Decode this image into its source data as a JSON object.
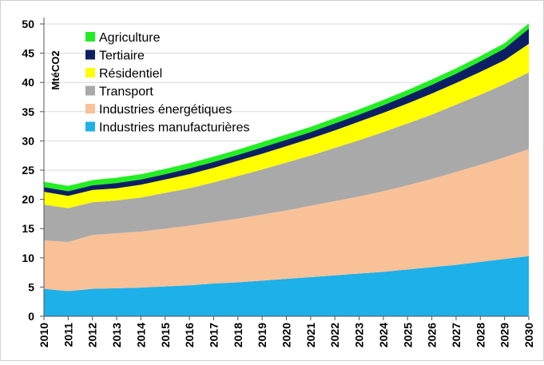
{
  "chart_data": {
    "type": "area",
    "stacked": true,
    "ylabel": "MtéCO2",
    "xlabel": "",
    "ylim": [
      0,
      50
    ],
    "yticks": [
      "0",
      "5",
      "10",
      "15",
      "20",
      "25",
      "30",
      "35",
      "40",
      "45",
      "50"
    ],
    "grid": true,
    "legend_position": "top-left",
    "x": [
      "2010",
      "2011",
      "2012",
      "2013",
      "2014",
      "2015",
      "2016",
      "2017",
      "2018",
      "2019",
      "2020",
      "2021",
      "2022",
      "2023",
      "2024",
      "2025",
      "2026",
      "2027",
      "2028",
      "2029",
      "2030"
    ],
    "series": [
      {
        "name": "Industries manufacturières",
        "color": "#1EB0E8",
        "values": [
          4.7,
          4.3,
          4.7,
          4.8,
          4.9,
          5.1,
          5.3,
          5.6,
          5.8,
          6.1,
          6.4,
          6.7,
          7.0,
          7.3,
          7.6,
          8.0,
          8.4,
          8.8,
          9.3,
          9.8,
          10.3
        ]
      },
      {
        "name": "Industries énergétiques",
        "color": "#F8C198",
        "values": [
          8.3,
          8.4,
          9.2,
          9.4,
          9.6,
          9.9,
          10.2,
          10.5,
          10.9,
          11.3,
          11.7,
          12.2,
          12.7,
          13.2,
          13.8,
          14.4,
          15.1,
          15.9,
          16.6,
          17.4,
          18.3
        ]
      },
      {
        "name": "Transport",
        "color": "#A9A9A9",
        "values": [
          6.1,
          5.8,
          5.6,
          5.6,
          5.8,
          6.1,
          6.4,
          6.8,
          7.3,
          7.7,
          8.2,
          8.6,
          9.1,
          9.6,
          10.1,
          10.6,
          11.0,
          11.5,
          12.0,
          12.5,
          13.1
        ]
      },
      {
        "name": "Résidentiel",
        "color": "#FFFF00",
        "values": [
          2.2,
          2.1,
          2.1,
          2.1,
          2.2,
          2.3,
          2.4,
          2.5,
          2.6,
          2.7,
          2.8,
          2.9,
          3.0,
          3.2,
          3.3,
          3.4,
          3.6,
          3.7,
          3.9,
          4.1,
          4.9
        ]
      },
      {
        "name": "Tertiaire",
        "color": "#0D1F63",
        "values": [
          0.8,
          0.8,
          0.8,
          0.9,
          0.9,
          0.9,
          1.0,
          1.0,
          1.0,
          1.1,
          1.1,
          1.1,
          1.2,
          1.2,
          1.3,
          1.4,
          1.5,
          1.6,
          1.8,
          2.0,
          2.6
        ]
      },
      {
        "name": "Agriculture",
        "color": "#22EE22",
        "values": [
          0.9,
          0.9,
          0.9,
          0.9,
          0.9,
          0.9,
          0.9,
          0.9,
          0.9,
          0.9,
          0.9,
          0.9,
          0.9,
          0.9,
          0.9,
          0.9,
          0.9,
          0.9,
          0.9,
          0.9,
          0.9
        ]
      }
    ],
    "legend_order": [
      "Agriculture",
      "Tertiaire",
      "Résidentiel",
      "Transport",
      "Industries énergétiques",
      "Industries manufacturières"
    ]
  }
}
